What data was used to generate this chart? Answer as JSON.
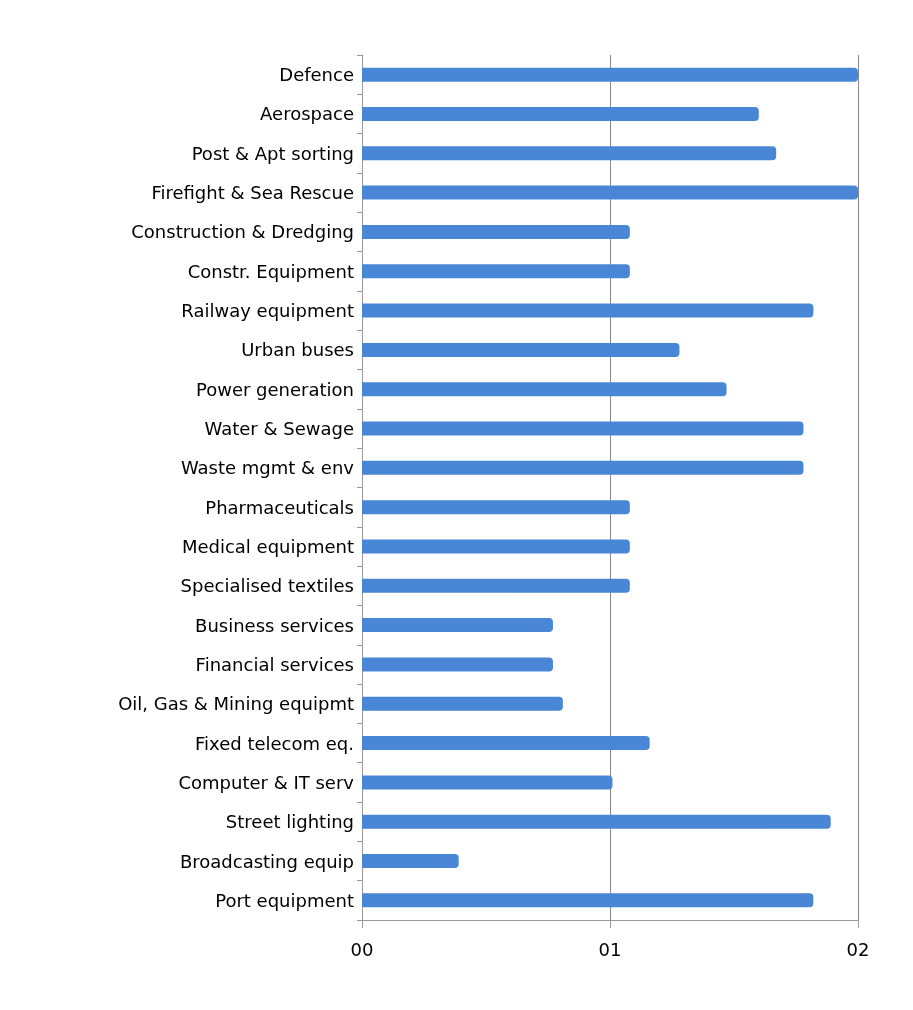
{
  "chart_data": {
    "type": "bar",
    "orientation": "horizontal",
    "categories": [
      "Defence",
      "Aerospace",
      "Post & Apt sorting",
      "Firefight & Sea Rescue",
      "Construction & Dredging",
      "Constr. Equipment",
      "Railway equipment",
      "Urban buses",
      "Power generation",
      "Water & Sewage",
      "Waste mgmt & env",
      "Pharmaceuticals",
      "Medical equipment",
      "Specialised textiles",
      "Business services",
      "Financial services",
      "Oil, Gas & Mining equipmt",
      "Fixed telecom eq.",
      "Computer & IT serv",
      "Street lighting",
      "Broadcasting equip",
      "Port equipment"
    ],
    "values": [
      2.0,
      1.6,
      1.67,
      2.0,
      1.08,
      1.08,
      1.82,
      1.28,
      1.47,
      1.78,
      1.78,
      1.08,
      1.08,
      1.08,
      0.77,
      0.77,
      0.81,
      1.16,
      1.01,
      1.89,
      0.39,
      1.82
    ],
    "color": "#4a86d6",
    "xlim": [
      0,
      2
    ],
    "xticks": [
      {
        "value": 0,
        "label": "00"
      },
      {
        "value": 1,
        "label": "01"
      },
      {
        "value": 2,
        "label": "02"
      }
    ],
    "grid": "x"
  }
}
